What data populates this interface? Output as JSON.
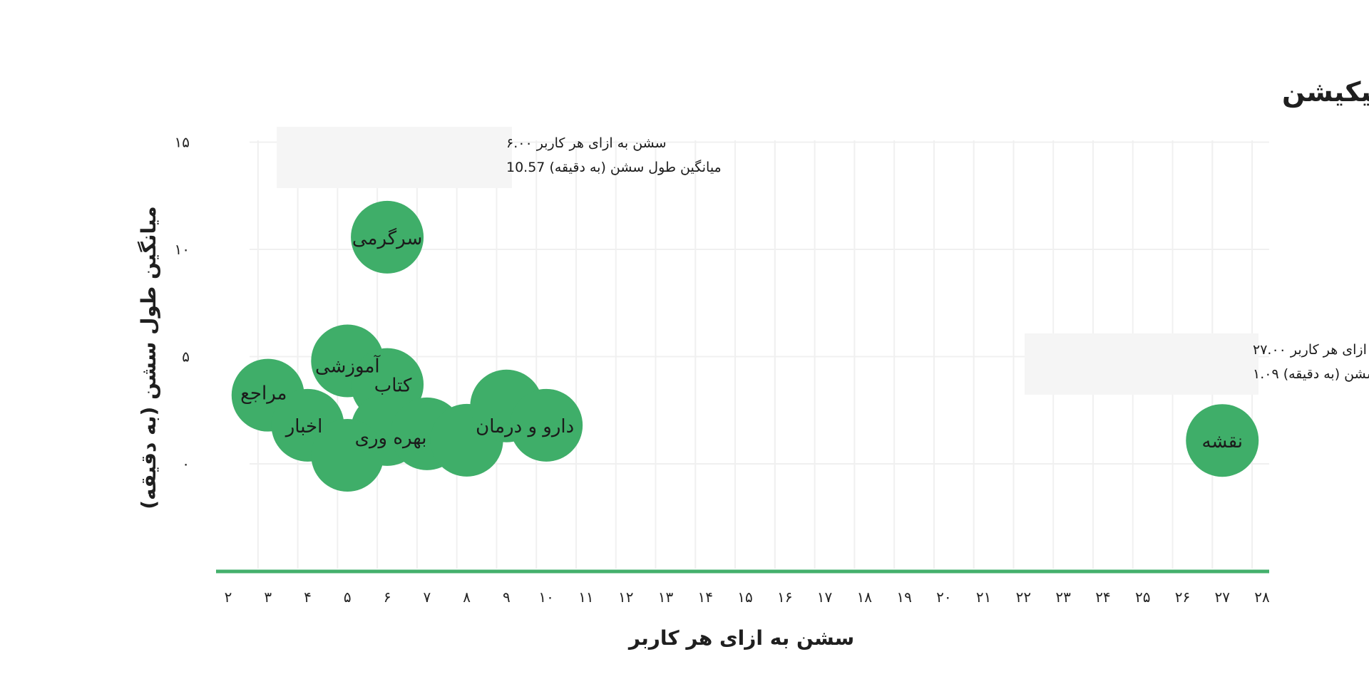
{
  "chart_data": {
    "type": "scatter",
    "title": "میزان تعامل کاربران با اپلیکیشن",
    "xlabel": "سشن به ازای هر کاربر",
    "ylabel": "میانگین طول سشن (به دقیقه)",
    "x_ticks": [
      "۲",
      "۳",
      "۴",
      "۵",
      "۶",
      "۷",
      "۸",
      "۹",
      "۱۰",
      "۱۱",
      "۱۲",
      "۱۳",
      "۱۴",
      "۱۵",
      "۱۶",
      "۱۷",
      "۱۸",
      "۱۹",
      "۲۰",
      "۲۱",
      "۲۲",
      "۲۳",
      "۲۴",
      "۲۵",
      "۲۶",
      "۲۷",
      "۲۸"
    ],
    "y_ticks": [
      {
        "value": 0,
        "label": "۰"
      },
      {
        "value": 5,
        "label": "۵"
      },
      {
        "value": 10,
        "label": "۱۰"
      },
      {
        "value": 15,
        "label": "۱۵"
      }
    ],
    "points": [
      {
        "name": "سرگرمی",
        "x": 6,
        "y": 10.57
      },
      {
        "name": "آموزشی",
        "x": 5,
        "y": 4.8
      },
      {
        "name": "کتاب",
        "x": 6,
        "y": 3.7
      },
      {
        "name": "مراجع",
        "x": 3,
        "y": 3.2
      },
      {
        "name": "اخبار",
        "x": 4,
        "y": 1.8
      },
      {
        "name": "بهره وری",
        "x": 6,
        "y": 1.6
      },
      {
        "name": "",
        "x": 5,
        "y": 0.4
      },
      {
        "name": "",
        "x": 7,
        "y": 1.4
      },
      {
        "name": "",
        "x": 8,
        "y": 1.1
      },
      {
        "name": "",
        "x": 9,
        "y": 2.7
      },
      {
        "name": "دارو و درمان",
        "x": 10,
        "y": 1.8
      },
      {
        "name": "نقشه",
        "x": 27,
        "y": 1.09
      }
    ],
    "tooltips": [
      {
        "line1_label": "سشن به ازای هر کاربر",
        "line1_value": "۶.۰۰",
        "line2_label": "میانگین طول سشن (به دقیقه)",
        "line2_value": "10.57",
        "anchor": "top-left"
      },
      {
        "line1_label": "سشن به ازای هر کاربر",
        "line1_value": "۲۷.۰۰",
        "line2_label": "میانگین طول سشن (به دقیقه)",
        "line2_value": "۱.۰۹",
        "anchor": "right"
      }
    ],
    "grid": true,
    "legend": "none",
    "colors": {
      "bubble": "#3fae69",
      "axis_line": "#44b06c",
      "grid": "#f0f0f0",
      "tooltip_bg": "#f5f5f5"
    }
  }
}
